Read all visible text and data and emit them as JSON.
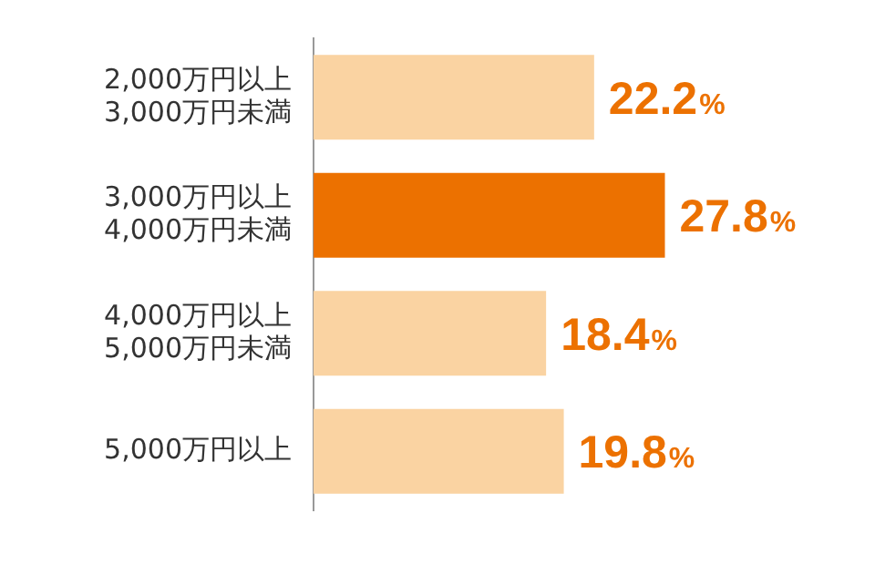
{
  "chart_data": {
    "type": "bar",
    "orientation": "horizontal",
    "categories": [
      "2,000万円以上\n3,000万円未満",
      "3,000万円以上\n4,000万円未満",
      "4,000万円以上\n5,000万円未満",
      "5,000万円以上"
    ],
    "values": [
      22.2,
      27.8,
      18.4,
      19.8
    ],
    "colors": [
      "#fad3a2",
      "#ec7100",
      "#fad3a2",
      "#fad3a2"
    ],
    "value_labels": [
      "22.2%",
      "27.8%",
      "18.4%",
      "19.8%"
    ],
    "legend": false
  }
}
